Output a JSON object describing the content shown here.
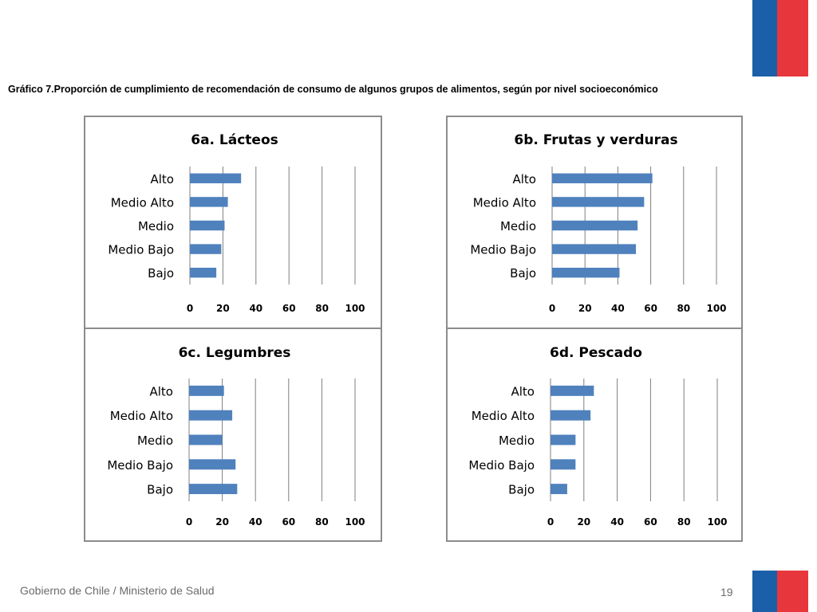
{
  "title": "Gráfico 7.Proporción de cumplimiento de recomendación de consumo de algunos grupos de alimentos, según por nivel socioeconómico",
  "footer": {
    "text": "Gobierno de Chile / Ministerio de Salud",
    "page": "19"
  },
  "colors": {
    "bar": "#4f81bd",
    "grid": "#7f7f7f",
    "panel_border": "#8c8c8c",
    "flag_blue": "#1a5fa8",
    "flag_red": "#e8373c"
  },
  "chart_data": [
    {
      "id": "6a",
      "type": "bar",
      "orientation": "horizontal",
      "title": "6a. Lácteos",
      "categories": [
        "Alto",
        "Medio Alto",
        "Medio",
        "Medio Bajo",
        "Bajo"
      ],
      "values": [
        31,
        23,
        21,
        19,
        16
      ],
      "xlim": [
        0,
        100
      ],
      "xticks": [
        "0",
        "20",
        "40",
        "60",
        "80",
        "100"
      ],
      "grid": true,
      "legend": "none"
    },
    {
      "id": "6b",
      "type": "bar",
      "orientation": "horizontal",
      "title": "6b. Frutas y verduras",
      "categories": [
        "Alto",
        "Medio Alto",
        "Medio",
        "Medio Bajo",
        "Bajo"
      ],
      "values": [
        61,
        56,
        52,
        51,
        41
      ],
      "xlim": [
        0,
        100
      ],
      "xticks": [
        "0",
        "20",
        "40",
        "60",
        "80",
        "100"
      ],
      "grid": true,
      "legend": "none"
    },
    {
      "id": "6c",
      "type": "bar",
      "orientation": "horizontal",
      "title": "6c. Legumbres",
      "categories": [
        "Alto",
        "Medio Alto",
        "Medio",
        "Medio Bajo",
        "Bajo"
      ],
      "values": [
        21,
        26,
        20,
        28,
        29
      ],
      "xlim": [
        0,
        100
      ],
      "xticks": [
        "0",
        "20",
        "40",
        "60",
        "80",
        "100"
      ],
      "grid": true,
      "legend": "none"
    },
    {
      "id": "6d",
      "type": "bar",
      "orientation": "horizontal",
      "title": "6d. Pescado",
      "categories": [
        "Alto",
        "Medio Alto",
        "Medio",
        "Medio Bajo",
        "Bajo"
      ],
      "values": [
        26,
        24,
        15,
        15,
        10
      ],
      "xlim": [
        0,
        100
      ],
      "xticks": [
        "0",
        "20",
        "40",
        "60",
        "80",
        "100"
      ],
      "grid": true,
      "legend": "none"
    }
  ]
}
